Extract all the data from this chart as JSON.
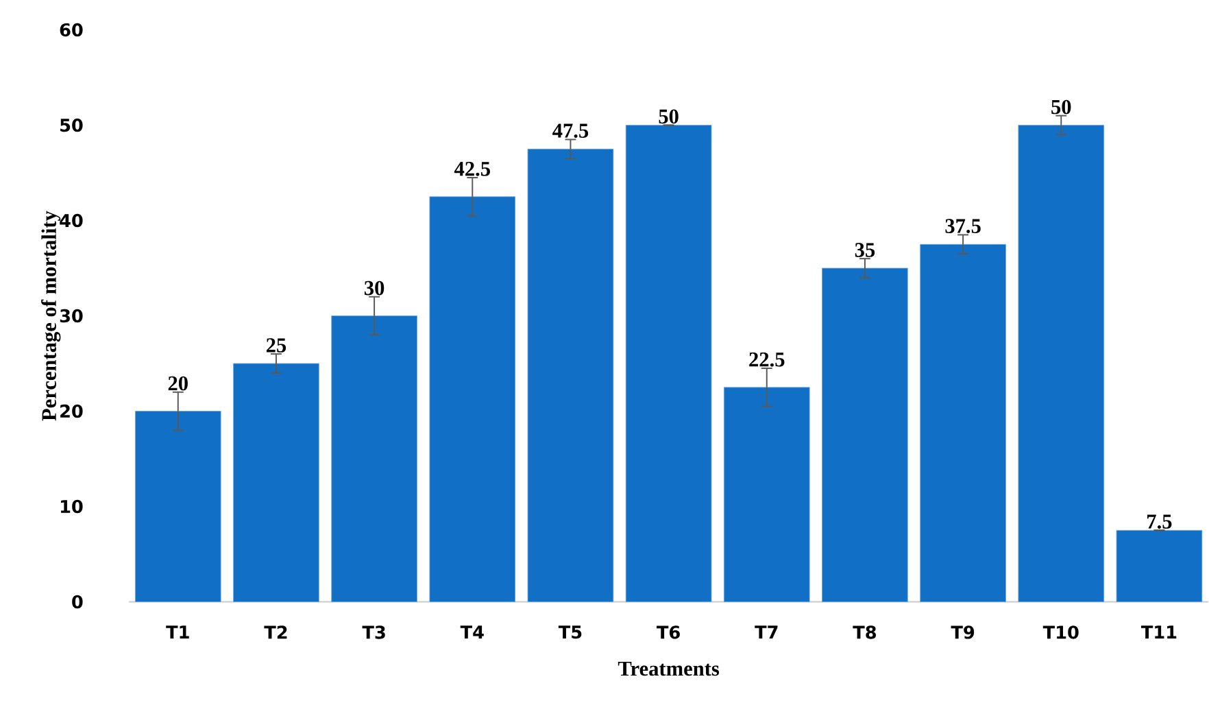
{
  "chart_data": {
    "type": "bar",
    "xlabel": "Treatments",
    "ylabel": "Percentage of mortality",
    "categories": [
      "T1",
      "T2",
      "T3",
      "T4",
      "T5",
      "T6",
      "T7",
      "T8",
      "T9",
      "T10",
      "T11"
    ],
    "values": [
      20,
      25,
      30,
      42.5,
      47.5,
      50,
      22.5,
      35,
      37.5,
      50,
      7.5
    ],
    "errors": [
      2,
      1,
      2,
      2,
      1,
      0,
      2,
      1,
      1,
      1,
      0
    ],
    "color": "#1170c6",
    "ylim": [
      0,
      60
    ],
    "yticks": [
      0,
      10,
      20,
      30,
      40,
      50,
      60
    ],
    "data_labels": true
  }
}
